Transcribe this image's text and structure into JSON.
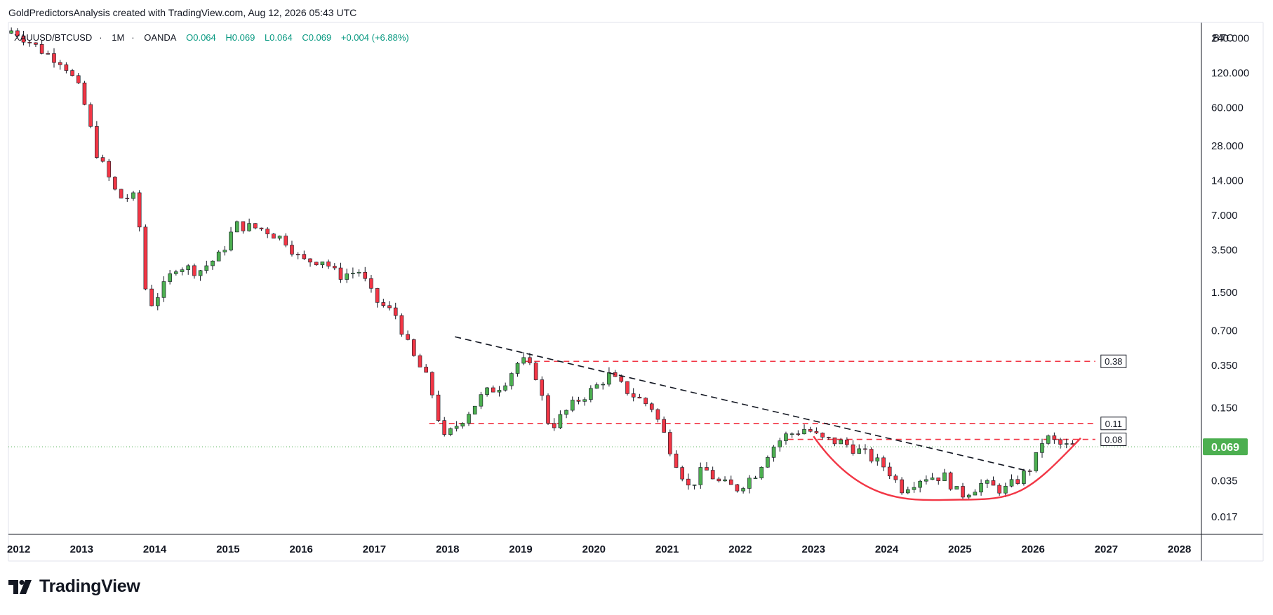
{
  "caption": "GoldPredictorsAnalysis created with TradingView.com, Aug 12, 2026 05:43 UTC",
  "symbol": {
    "name": "XAUUSD/BTCUSD",
    "interval": "1M",
    "exchange": "OANDA",
    "open": "O0.064",
    "high": "H0.069",
    "low": "L0.064",
    "close": "C0.069",
    "change": "+0.004 (+6.88%)"
  },
  "price_axis": {
    "unit": "BTC",
    "last_price": "0.069",
    "last_price_color": "#4caf50"
  },
  "footer": {
    "brand": "TradingView"
  },
  "colors": {
    "up": "#4caf50",
    "down": "#f23645",
    "trendline": "#131722",
    "level": "#f23645",
    "cup": "#f23645",
    "last_price_line": "#4caf50"
  },
  "chart_data": {
    "type": "candlestick",
    "scale": "log",
    "ylim": [
      0.012,
      330
    ],
    "xlim": [
      2012.0,
      2028.3
    ],
    "y_ticks": [
      "240.000",
      "120.000",
      "60.000",
      "28.000",
      "14.000",
      "7.000",
      "3.500",
      "1.500",
      "0.700",
      "0.350",
      "0.150",
      "0.035",
      "0.017"
    ],
    "x_ticks": [
      "2012",
      "2013",
      "2014",
      "2015",
      "2016",
      "2017",
      "2018",
      "2019",
      "2020",
      "2021",
      "2022",
      "2023",
      "2024",
      "2025",
      "2026",
      "2027",
      "2028"
    ],
    "close_path": [
      [
        2012.08,
        280
      ],
      [
        2012.5,
        180
      ],
      [
        2012.75,
        150
      ],
      [
        2013.0,
        80
      ],
      [
        2013.2,
        25
      ],
      [
        2013.5,
        10
      ],
      [
        2013.75,
        10
      ],
      [
        2013.9,
        1.1
      ],
      [
        2014.1,
        1.6
      ],
      [
        2014.3,
        2.6
      ],
      [
        2014.6,
        2.3
      ],
      [
        2014.9,
        3.2
      ],
      [
        2015.1,
        5.8
      ],
      [
        2015.5,
        5.3
      ],
      [
        2015.8,
        4.2
      ],
      [
        2016.0,
        2.8
      ],
      [
        2016.3,
        2.9
      ],
      [
        2016.5,
        2.1
      ],
      [
        2016.8,
        2.3
      ],
      [
        2017.0,
        1.3
      ],
      [
        2017.3,
        0.95
      ],
      [
        2017.5,
        0.45
      ],
      [
        2017.75,
        0.25
      ],
      [
        2017.95,
        0.08
      ],
      [
        2018.2,
        0.12
      ],
      [
        2018.5,
        0.2
      ],
      [
        2018.75,
        0.24
      ],
      [
        2019.0,
        0.4
      ],
      [
        2019.2,
        0.3
      ],
      [
        2019.4,
        0.1
      ],
      [
        2019.75,
        0.17
      ],
      [
        2020.0,
        0.22
      ],
      [
        2020.2,
        0.29
      ],
      [
        2020.5,
        0.2
      ],
      [
        2020.8,
        0.15
      ],
      [
        2021.1,
        0.055
      ],
      [
        2021.3,
        0.03
      ],
      [
        2021.5,
        0.045
      ],
      [
        2021.7,
        0.034
      ],
      [
        2021.95,
        0.03
      ],
      [
        2022.2,
        0.04
      ],
      [
        2022.4,
        0.065
      ],
      [
        2022.6,
        0.085
      ],
      [
        2022.9,
        0.1
      ],
      [
        2023.1,
        0.08
      ],
      [
        2023.4,
        0.075
      ],
      [
        2023.7,
        0.06
      ],
      [
        2024.0,
        0.045
      ],
      [
        2024.2,
        0.03
      ],
      [
        2024.5,
        0.038
      ],
      [
        2024.8,
        0.038
      ],
      [
        2025.0,
        0.026
      ],
      [
        2025.3,
        0.033
      ],
      [
        2025.6,
        0.029
      ],
      [
        2025.8,
        0.036
      ],
      [
        2026.0,
        0.048
      ],
      [
        2026.15,
        0.085
      ],
      [
        2026.4,
        0.07
      ],
      [
        2026.6,
        0.069
      ]
    ],
    "trendline": [
      [
        2018.1,
        0.62
      ],
      [
        2025.9,
        0.043
      ]
    ],
    "levels": [
      {
        "value": 0.38,
        "label": "0.38",
        "x_start": 2019.05,
        "x_end": 2026.85
      },
      {
        "value": 0.11,
        "label": "0.11",
        "x_start": 2017.75,
        "x_end": 2026.85
      },
      {
        "value": 0.08,
        "label": "0.08",
        "x_start": 2022.65,
        "x_end": 2026.85
      }
    ],
    "cup": {
      "x_start": 2023.0,
      "x_end": 2026.65,
      "left_value": 0.085,
      "bottom_value": 0.024,
      "right_value": 0.082,
      "bottom_x": 2025.0
    },
    "last_close": 0.069
  }
}
